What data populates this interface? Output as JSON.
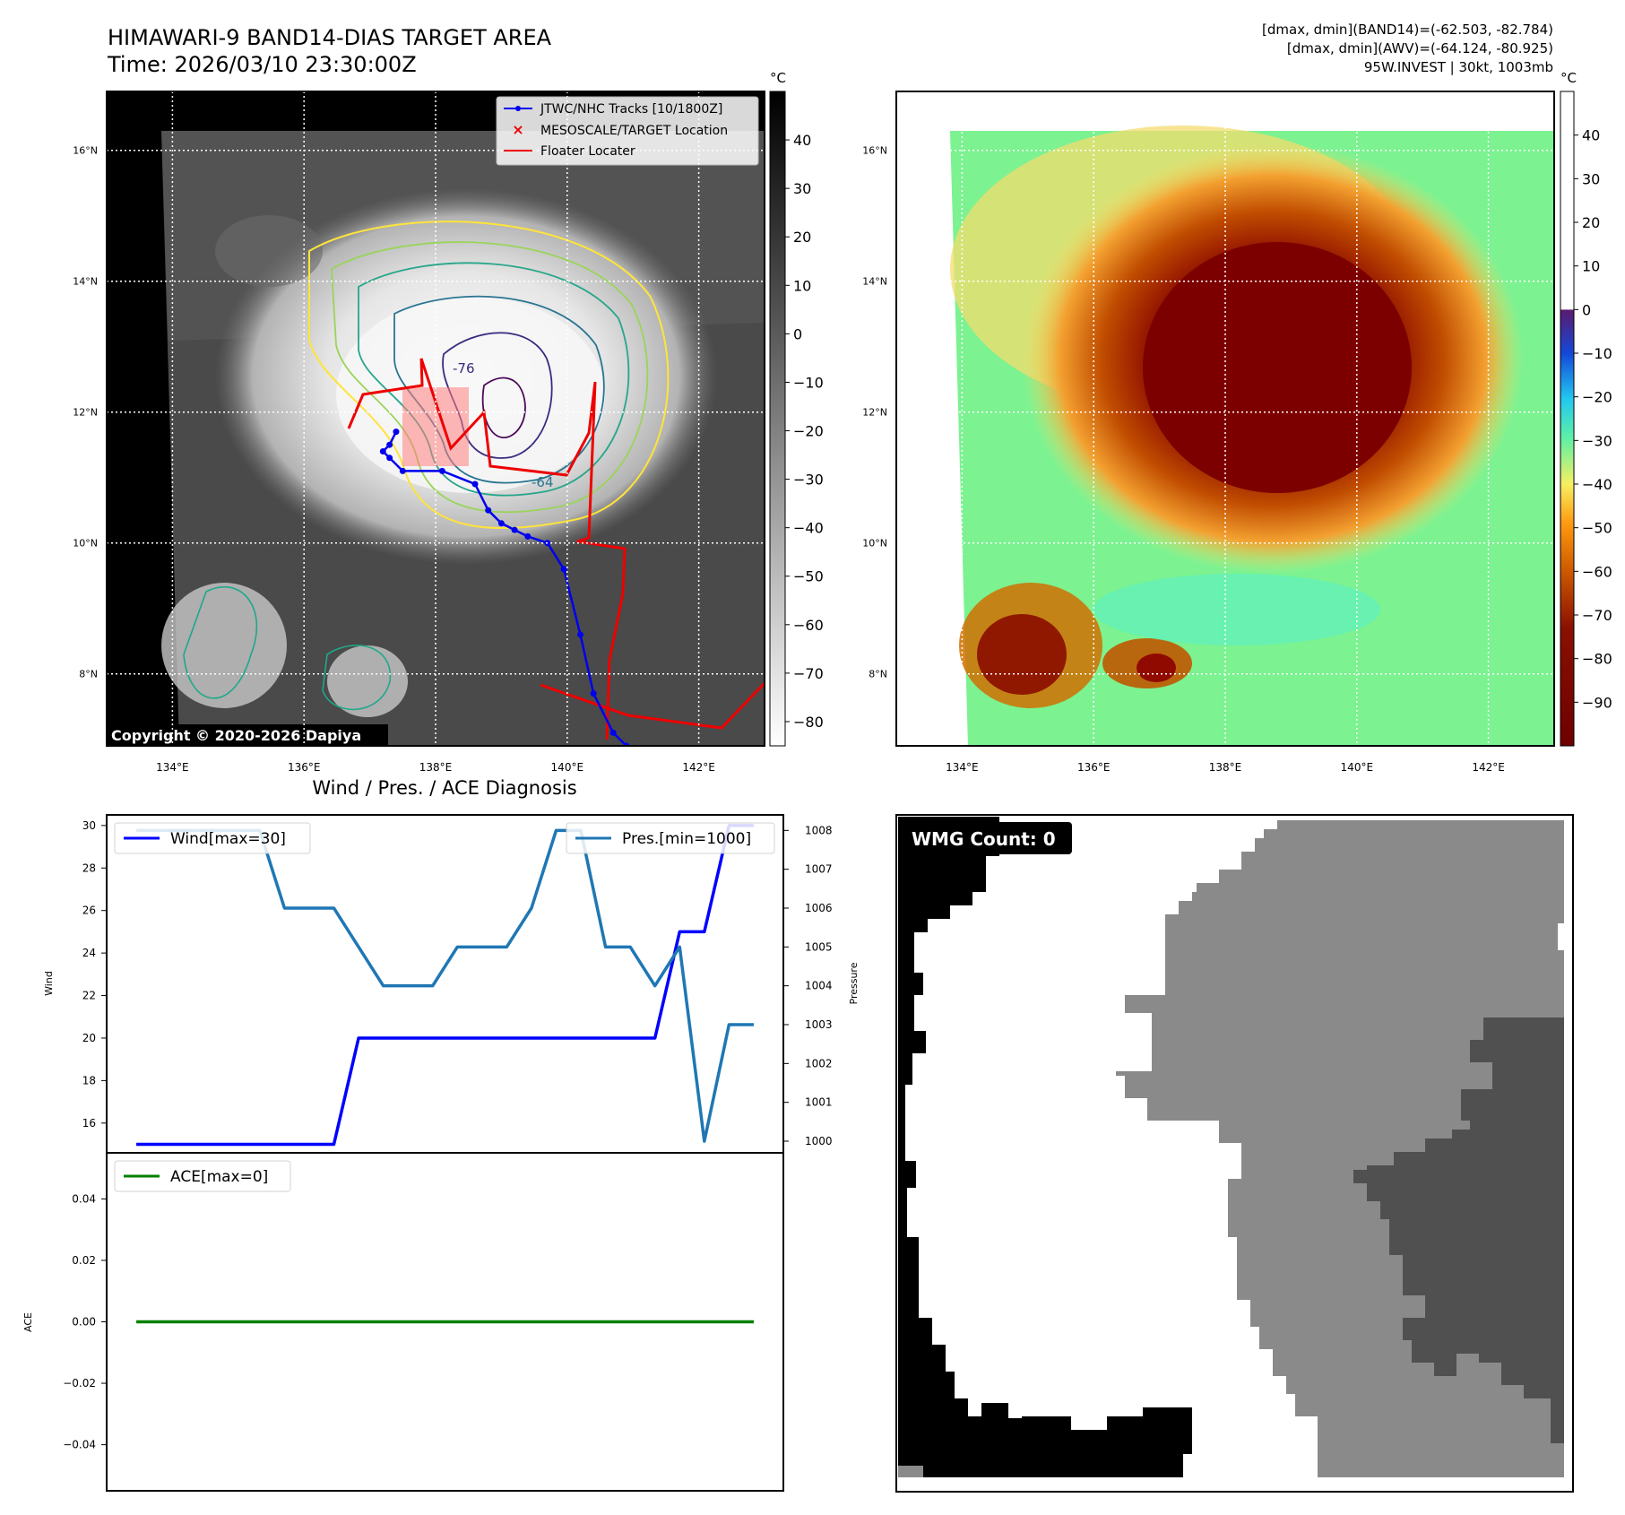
{
  "header": {
    "title_line1": "HIMAWARI-9 BAND14-DIAS TARGET AREA",
    "title_line2": "Time: 2026/03/10 23:30:00Z",
    "info_line1": "[dmax, dmin](BAND14)=(-62.503, -82.784)",
    "info_line2": "[dmax, dmin](AWV)=(-64.124, -80.925)",
    "info_line3": "95W.INVEST | 30kt, 1003mb"
  },
  "map_axes": {
    "lat_labels": [
      "16°N",
      "14°N",
      "12°N",
      "10°N",
      "8°N"
    ],
    "lon_labels": [
      "134°E",
      "136°E",
      "138°E",
      "140°E",
      "142°E"
    ],
    "lat_values": [
      16,
      14,
      12,
      10,
      8
    ],
    "lon_values": [
      134,
      136,
      138,
      140,
      142
    ],
    "lon_range": [
      133,
      143
    ],
    "lat_range": [
      6.9,
      16.9
    ],
    "grid": true
  },
  "ir_panel": {
    "legend": [
      "JTWC/NHC Tracks [10/1800Z]",
      "MESOSCALE/TARGET Location",
      "Floater Locater"
    ],
    "contour_labels": [
      "-76",
      "-64"
    ],
    "copyright": "Copyright © 2020-2026 Dapiya",
    "colorbar_unit": "°C",
    "colorbar_ticks": [
      "40",
      "30",
      "20",
      "10",
      "0",
      "−10",
      "−20",
      "−30",
      "−40",
      "−50",
      "−60",
      "−70",
      "−80"
    ],
    "colorbar_values": [
      40,
      30,
      20,
      10,
      0,
      -10,
      -20,
      -30,
      -40,
      -50,
      -60,
      -70,
      -80
    ],
    "colorbar_range": [
      -85,
      50
    ],
    "colors": {
      "track": "#0000ee",
      "floater": "#ee0000",
      "target_box": "#ff8080"
    }
  },
  "awv_panel": {
    "colorbar_unit": "°C",
    "colorbar_ticks": [
      "40",
      "30",
      "20",
      "10",
      "0",
      "−10",
      "−20",
      "−30",
      "−40",
      "−50",
      "−60",
      "−70",
      "−80",
      "−90"
    ],
    "colorbar_values": [
      40,
      30,
      20,
      10,
      0,
      -10,
      -20,
      -30,
      -40,
      -50,
      -60,
      -70,
      -80,
      -90
    ],
    "colorbar_range": [
      -100,
      50
    ]
  },
  "diagnosis_panel": {
    "title": "Wind / Pres. / ACE Diagnosis",
    "wind_ylabel": "Wind",
    "pressure_ylabel": "Pressure",
    "ace_ylabel": "ACE",
    "wind_legend": "Wind[max=30]",
    "pressure_legend": "Pres.[min=1000]",
    "ace_legend": "ACE[max=0]"
  },
  "wmg_panel": {
    "label": "WMG Count: 0",
    "colors": [
      "#000000",
      "#ffffff",
      "#8a8a8a",
      "#505050"
    ]
  },
  "chart_data": [
    {
      "type": "line",
      "x": [
        0,
        1,
        2,
        3,
        4,
        5,
        6,
        7,
        8,
        9,
        10,
        11,
        12,
        13,
        14,
        15,
        16,
        17,
        18,
        19,
        20,
        21,
        22,
        23,
        24,
        25
      ],
      "series": [
        {
          "name": "Wind[max=30]",
          "axis": "left",
          "color": "#0000ff",
          "values": [
            15,
            15,
            15,
            15,
            15,
            15,
            15,
            15,
            15,
            20,
            20,
            20,
            20,
            20,
            20,
            20,
            20,
            20,
            20,
            20,
            20,
            20,
            25,
            25,
            30,
            30
          ]
        },
        {
          "name": "Pres.[min=1000]",
          "axis": "right",
          "color": "#1f77b4",
          "values": [
            1008,
            1008,
            1008,
            1008,
            1008,
            1008,
            1006,
            1006,
            1006,
            1005,
            1004,
            1004,
            1004,
            1005,
            1005,
            1005,
            1006,
            1008,
            1008,
            1005,
            1005,
            1004,
            1005,
            1000,
            1003,
            1003
          ]
        }
      ],
      "ylabel": "Wind",
      "y2label": "Pressure",
      "ylim": [
        14.6,
        30.5
      ],
      "y2lim": [
        999.7,
        1008.4
      ],
      "yticks": [
        16,
        18,
        20,
        22,
        24,
        26,
        28,
        30
      ],
      "y2ticks": [
        1000,
        1001,
        1002,
        1003,
        1004,
        1005,
        1006,
        1007,
        1008
      ],
      "legend": "upper-left / upper-right"
    },
    {
      "type": "line",
      "x": [
        0,
        25
      ],
      "series": [
        {
          "name": "ACE[max=0]",
          "color": "#008000",
          "values": [
            0,
            0
          ]
        }
      ],
      "ylabel": "ACE",
      "ylim": [
        -0.055,
        0.055
      ],
      "yticks": [
        0.04,
        0.02,
        0.0,
        -0.02,
        -0.04
      ],
      "ytick_labels": [
        "0.04",
        "0.02",
        "0.00",
        "−0.02",
        "−0.04"
      ],
      "legend": "upper-left"
    }
  ]
}
